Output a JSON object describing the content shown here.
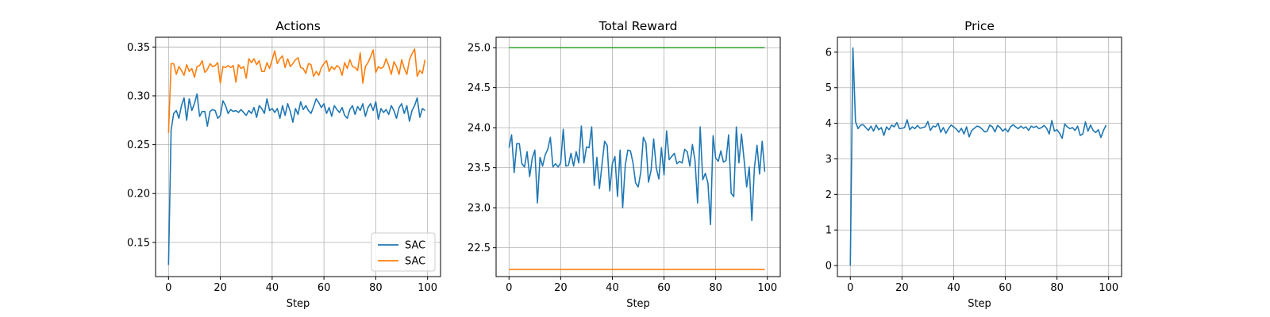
{
  "chart_data": [
    {
      "type": "line",
      "title": "Actions",
      "xlabel": "Step",
      "ylabel": "",
      "xlim": [
        -5,
        105
      ],
      "ylim": [
        0.115,
        0.36
      ],
      "xticks": [
        0,
        20,
        40,
        60,
        80,
        100
      ],
      "yticks": [
        0.15,
        0.2,
        0.25,
        0.3,
        0.35
      ],
      "ytick_labels": [
        "0.15",
        "0.20",
        "0.25",
        "0.30",
        "0.35"
      ],
      "grid": true,
      "legend": {
        "placement": "bottom-right",
        "entries": [
          "SAC",
          "SAC"
        ]
      },
      "series": [
        {
          "name": "SAC",
          "color": "#1f77b4",
          "values": [
            0.127,
            0.265,
            0.282,
            0.285,
            0.277,
            0.29,
            0.298,
            0.275,
            0.297,
            0.285,
            0.292,
            0.302,
            0.279,
            0.284,
            0.284,
            0.269,
            0.284,
            0.286,
            0.285,
            0.277,
            0.28,
            0.295,
            0.29,
            0.282,
            0.286,
            0.284,
            0.285,
            0.283,
            0.286,
            0.283,
            0.28,
            0.285,
            0.282,
            0.288,
            0.278,
            0.29,
            0.287,
            0.282,
            0.297,
            0.285,
            0.287,
            0.283,
            0.287,
            0.277,
            0.29,
            0.28,
            0.292,
            0.284,
            0.273,
            0.287,
            0.281,
            0.294,
            0.286,
            0.29,
            0.285,
            0.282,
            0.289,
            0.297,
            0.293,
            0.288,
            0.292,
            0.282,
            0.288,
            0.279,
            0.29,
            0.286,
            0.283,
            0.288,
            0.28,
            0.277,
            0.286,
            0.29,
            0.281,
            0.289,
            0.285,
            0.292,
            0.279,
            0.288,
            0.292,
            0.285,
            0.294,
            0.276,
            0.287,
            0.283,
            0.286,
            0.281,
            0.29,
            0.285,
            0.277,
            0.288,
            0.292,
            0.282,
            0.29,
            0.274,
            0.285,
            0.29,
            0.298,
            0.278,
            0.287,
            0.285
          ]
        },
        {
          "name": "SAC",
          "color": "#ff7f0e",
          "values": [
            0.262,
            0.333,
            0.333,
            0.322,
            0.33,
            0.326,
            0.321,
            0.332,
            0.325,
            0.328,
            0.319,
            0.33,
            0.331,
            0.336,
            0.324,
            0.327,
            0.333,
            0.33,
            0.331,
            0.334,
            0.313,
            0.33,
            0.329,
            0.331,
            0.329,
            0.331,
            0.314,
            0.332,
            0.328,
            0.33,
            0.318,
            0.338,
            0.334,
            0.338,
            0.332,
            0.336,
            0.325,
            0.325,
            0.334,
            0.328,
            0.337,
            0.346,
            0.333,
            0.338,
            0.341,
            0.329,
            0.338,
            0.33,
            0.333,
            0.337,
            0.339,
            0.329,
            0.328,
            0.323,
            0.333,
            0.332,
            0.32,
            0.325,
            0.321,
            0.329,
            0.333,
            0.336,
            0.325,
            0.33,
            0.327,
            0.331,
            0.329,
            0.321,
            0.334,
            0.328,
            0.337,
            0.33,
            0.329,
            0.326,
            0.344,
            0.313,
            0.33,
            0.334,
            0.34,
            0.347,
            0.324,
            0.33,
            0.328,
            0.33,
            0.338,
            0.331,
            0.322,
            0.335,
            0.33,
            0.322,
            0.337,
            0.328,
            0.322,
            0.337,
            0.343,
            0.348,
            0.32,
            0.326,
            0.323,
            0.337
          ]
        }
      ]
    },
    {
      "type": "line",
      "title": "Total Reward",
      "xlabel": "Step",
      "ylabel": "",
      "xlim": [
        -5,
        105
      ],
      "ylim": [
        22.14,
        25.13
      ],
      "xticks": [
        0,
        20,
        40,
        60,
        80,
        100
      ],
      "yticks": [
        22.5,
        23.0,
        23.5,
        24.0,
        24.5,
        25.0
      ],
      "ytick_labels": [
        "22.5",
        "23.0",
        "23.5",
        "24.0",
        "24.5",
        "25.0"
      ],
      "grid": true,
      "series": [
        {
          "color": "#1f77b4",
          "values": [
            23.75,
            23.91,
            23.44,
            23.8,
            23.8,
            23.55,
            23.51,
            23.7,
            23.39,
            23.62,
            23.72,
            23.06,
            23.63,
            23.52,
            23.66,
            23.73,
            23.88,
            23.51,
            23.55,
            23.51,
            23.56,
            23.98,
            23.52,
            23.53,
            23.68,
            23.52,
            23.7,
            23.56,
            24.02,
            23.56,
            23.76,
            23.75,
            24.01,
            23.28,
            23.63,
            23.24,
            23.54,
            23.83,
            23.78,
            23.21,
            23.55,
            23.64,
            23.14,
            23.72,
            23.0,
            23.53,
            23.72,
            23.71,
            23.56,
            23.31,
            23.26,
            23.44,
            23.88,
            23.81,
            23.32,
            23.47,
            23.86,
            23.5,
            23.36,
            23.75,
            23.41,
            23.96,
            23.6,
            23.64,
            23.68,
            23.55,
            23.58,
            23.56,
            23.73,
            23.7,
            23.52,
            23.79,
            23.59,
            23.06,
            24.01,
            23.35,
            23.43,
            23.31,
            22.79,
            23.9,
            23.62,
            23.58,
            23.71,
            23.57,
            23.59,
            23.91,
            23.18,
            23.14,
            24.01,
            23.56,
            23.92,
            23.6,
            23.26,
            23.51,
            22.84,
            23.5,
            23.78,
            23.42,
            23.83,
            23.45
          ]
        },
        {
          "color": "#2ca02c",
          "values": [
            25.0,
            25.0
          ]
        },
        {
          "color": "#ff7f0e",
          "values": [
            22.23,
            22.23
          ]
        }
      ],
      "reference_x": [
        0,
        99
      ]
    },
    {
      "type": "line",
      "title": "Price",
      "xlabel": "Step",
      "ylabel": "",
      "xlim": [
        -5,
        105
      ],
      "ylim": [
        -0.31,
        6.42
      ],
      "xticks": [
        0,
        20,
        40,
        60,
        80,
        100
      ],
      "yticks": [
        0,
        1,
        2,
        3,
        4,
        5,
        6
      ],
      "ytick_labels": [
        "0",
        "1",
        "2",
        "3",
        "4",
        "5",
        "6"
      ],
      "grid": true,
      "series": [
        {
          "color": "#1f77b4",
          "values": [
            0.0,
            6.12,
            4.05,
            3.85,
            3.95,
            3.96,
            3.88,
            3.8,
            3.92,
            3.78,
            3.95,
            3.82,
            3.88,
            3.66,
            3.9,
            3.82,
            3.95,
            3.9,
            4.02,
            3.85,
            3.86,
            3.88,
            4.1,
            3.82,
            3.9,
            3.85,
            3.94,
            3.86,
            3.88,
            3.9,
            4.05,
            3.8,
            3.92,
            3.9,
            4.0,
            3.75,
            3.88,
            3.72,
            3.85,
            3.95,
            3.9,
            3.84,
            3.75,
            3.86,
            3.7,
            3.9,
            3.62,
            3.8,
            3.86,
            3.92,
            3.9,
            3.84,
            3.76,
            3.78,
            3.95,
            3.9,
            3.76,
            3.94,
            3.88,
            3.78,
            3.85,
            3.76,
            3.9,
            3.96,
            3.9,
            3.85,
            3.92,
            3.86,
            3.9,
            3.8,
            3.92,
            3.88,
            3.92,
            3.85,
            3.88,
            3.94,
            3.86,
            3.7,
            4.08,
            3.78,
            3.82,
            3.72,
            3.58,
            3.98,
            3.9,
            3.85,
            3.88,
            3.8,
            3.92,
            3.66,
            3.7,
            4.04,
            3.78,
            3.95,
            3.8,
            3.74,
            3.82,
            3.6,
            3.8,
            3.95
          ]
        }
      ]
    }
  ]
}
